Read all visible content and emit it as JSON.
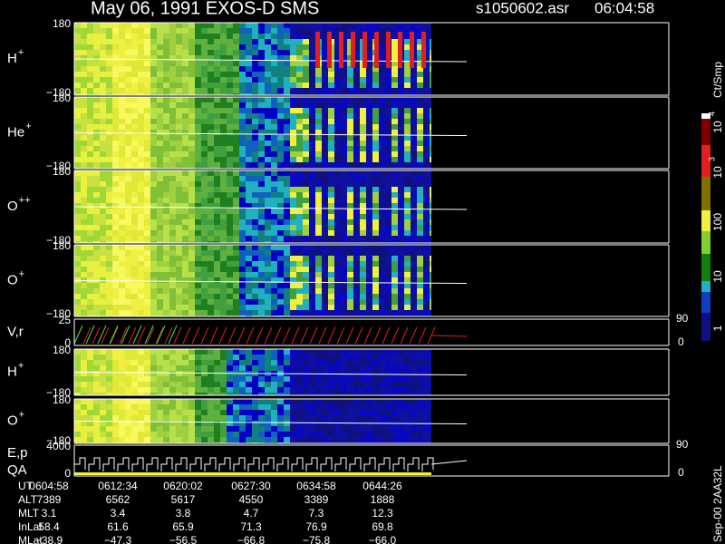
{
  "header": {
    "title": "May 06, 1991   EXOS-D SMS",
    "file": "s1050602.asr",
    "time": "06:04:58"
  },
  "panels": [
    {
      "label": "H",
      "sup": "+",
      "top": "180",
      "bottom": "−180"
    },
    {
      "label": "He",
      "sup": "+",
      "top": "180",
      "bottom": "−180"
    },
    {
      "label": "O",
      "sup": "++",
      "top": "180",
      "bottom": "−180"
    },
    {
      "label": "O",
      "sup": "+",
      "top": "180",
      "bottom": "−180"
    },
    {
      "label": "V,r",
      "top": "25",
      "bottom": "0",
      "right_top": "90",
      "right_bottom": "0"
    },
    {
      "label": "H",
      "sup": "+",
      "top": "180",
      "bottom": "−180"
    },
    {
      "label": "O",
      "sup": "+",
      "top": "180",
      "bottom": "−180"
    },
    {
      "label": "E,p",
      "label2": "QA",
      "top": "4000",
      "bottom": "0",
      "right_top": "90",
      "right_bottom": "0"
    }
  ],
  "colorbar": {
    "unit": "Ct/Smp",
    "ticks": [
      {
        "base": "10",
        "exp": "4"
      },
      {
        "base": "10",
        "exp": "3"
      },
      {
        "base": "100"
      },
      {
        "base": "10"
      },
      {
        "base": "1"
      }
    ]
  },
  "table": {
    "rows": [
      {
        "label": "UT",
        "values": [
          "0604:58",
          "0612:34",
          "0620:02",
          "0627:30",
          "0634:58",
          "0644:26"
        ]
      },
      {
        "label": "ALT",
        "values": [
          "7389",
          "6562",
          "5617",
          "4550",
          "3389",
          "1888"
        ]
      },
      {
        "label": "MLT",
        "values": [
          "3.1",
          "3.4",
          "3.8",
          "4.7",
          "7.3",
          "12.3"
        ]
      },
      {
        "label": "InLat",
        "values": [
          "58.4",
          "61.6",
          "65.9",
          "71.3",
          "76.9",
          "69.8"
        ]
      },
      {
        "label": "MLat",
        "values": [
          "−38.9",
          "−47.3",
          "−56.5",
          "−66.8",
          "−75.8",
          "−66.0"
        ]
      }
    ]
  },
  "footer": "Sep-00 2AA32L"
}
